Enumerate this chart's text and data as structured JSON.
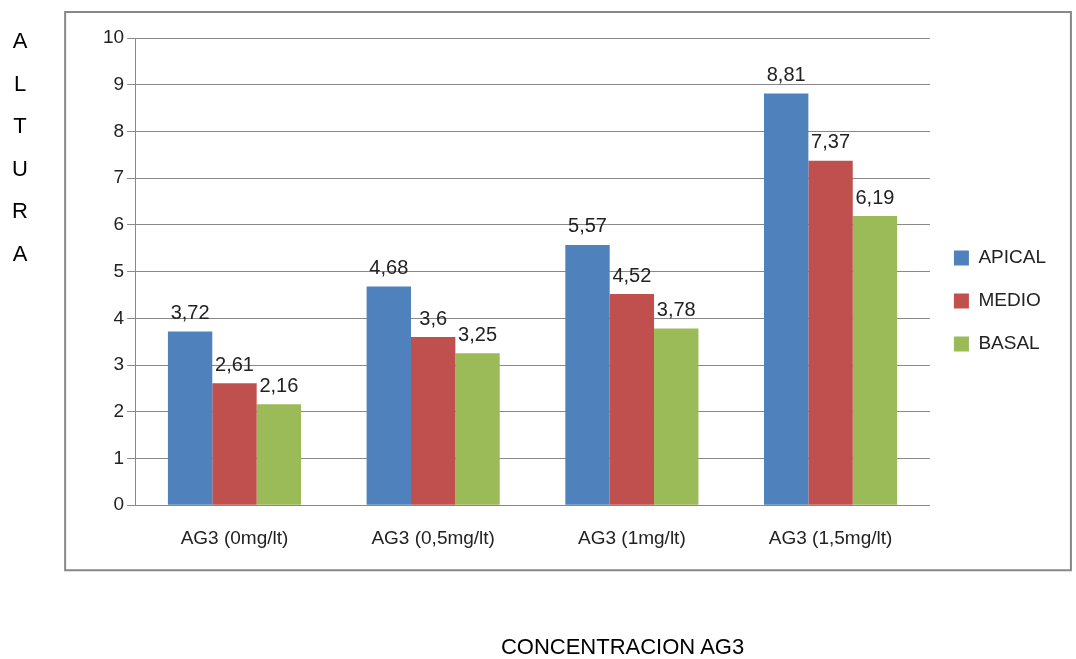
{
  "chart_data": {
    "type": "bar",
    "xlabel": "CONCENTRACION AG3",
    "ylabel": "ALTURA",
    "categories": [
      "AG3 (0mg/lt)",
      "AG3 (0,5mg/lt)",
      "AG3 (1mg/lt)",
      "AG3 (1,5mg/lt)"
    ],
    "series": [
      {
        "name": "APICAL",
        "color": "#4f81bd",
        "values": [
          3.72,
          4.68,
          5.57,
          8.81
        ],
        "value_labels": [
          "3,72",
          "4,68",
          "5,57",
          "8,81"
        ]
      },
      {
        "name": "MEDIO",
        "color": "#c0504d",
        "values": [
          2.61,
          3.6,
          4.52,
          7.37
        ],
        "value_labels": [
          "2,61",
          "3,6",
          "4,52",
          "7,37"
        ]
      },
      {
        "name": "BASAL",
        "color": "#9bbb59",
        "values": [
          2.16,
          3.25,
          3.78,
          6.19
        ],
        "value_labels": [
          "2,16",
          "3,25",
          "3,78",
          "6,19"
        ]
      }
    ],
    "ylim": [
      0,
      10
    ],
    "yticks": [
      0,
      1,
      2,
      3,
      4,
      5,
      6,
      7,
      8,
      9,
      10
    ],
    "grid": "y",
    "legend": "right"
  }
}
